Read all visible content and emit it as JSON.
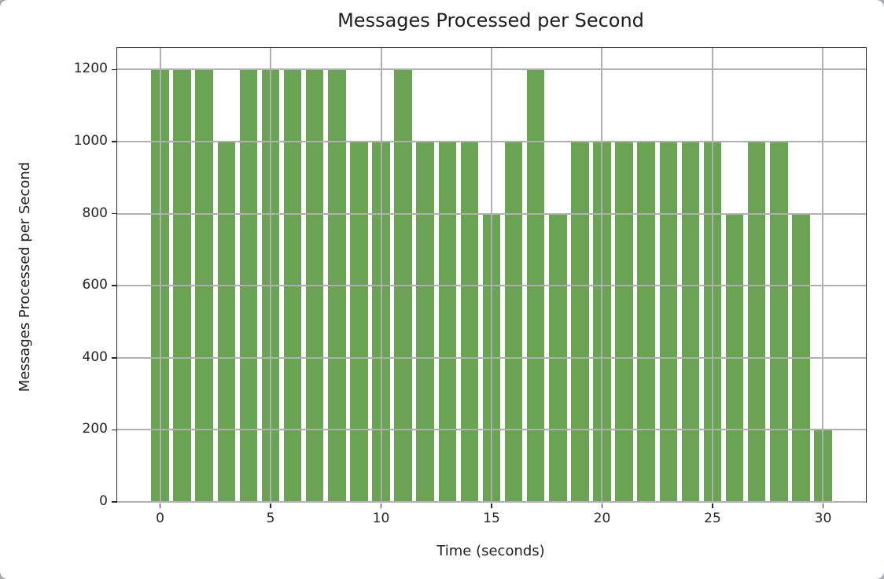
{
  "chart_data": {
    "type": "bar",
    "title": "Messages Processed per Second",
    "xlabel": "Time (seconds)",
    "ylabel": "Messages Processed per Second",
    "x": [
      0,
      1,
      2,
      3,
      4,
      5,
      6,
      7,
      8,
      9,
      10,
      11,
      12,
      13,
      14,
      15,
      16,
      17,
      18,
      19,
      20,
      21,
      22,
      23,
      24,
      25,
      26,
      27,
      28,
      29,
      30
    ],
    "values": [
      1200,
      1200,
      1200,
      1000,
      1200,
      1200,
      1200,
      1200,
      1200,
      1000,
      1000,
      1200,
      1000,
      1000,
      1000,
      800,
      1000,
      1200,
      800,
      1000,
      1000,
      1000,
      1000,
      1000,
      1000,
      1000,
      800,
      1000,
      1000,
      800,
      200
    ],
    "bar_color": "#6aa353",
    "bar_width": 0.8,
    "xlim": [
      -1.94,
      31.94
    ],
    "ylim": [
      0,
      1260
    ],
    "xticks": [
      0,
      5,
      10,
      15,
      20,
      25,
      30
    ],
    "yticks": [
      0,
      200,
      400,
      600,
      800,
      1000,
      1200
    ],
    "grid": true,
    "grid_color": "#b0b0b0",
    "legend": "none"
  }
}
